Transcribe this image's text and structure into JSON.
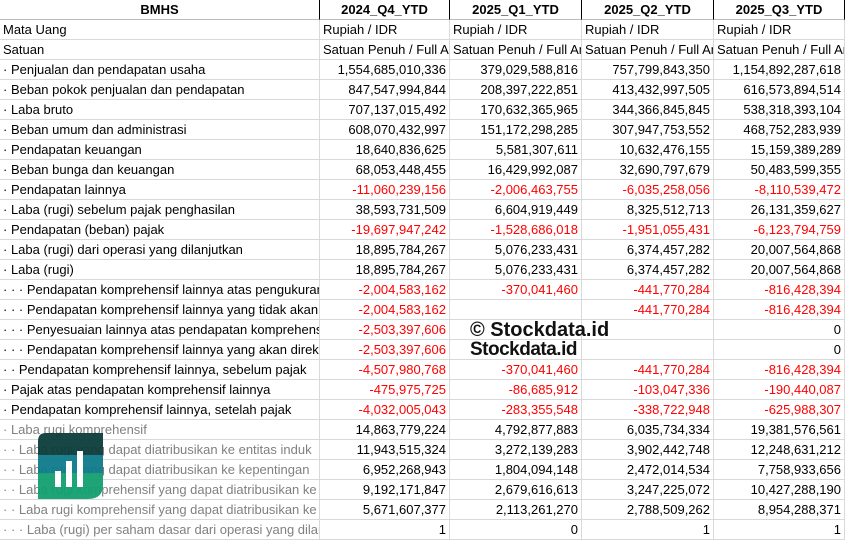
{
  "header": {
    "ticker": "BMHS",
    "periods": [
      "2024_Q4_YTD",
      "2025_Q1_YTD",
      "2025_Q2_YTD",
      "2025_Q3_YTD"
    ]
  },
  "meta_rows": [
    {
      "label": "Mata Uang",
      "values": [
        "Rupiah / IDR",
        "Rupiah / IDR",
        "Rupiah / IDR",
        "Rupiah / IDR"
      ]
    },
    {
      "label": "Satuan",
      "values": [
        "Satuan Penuh / Full Amount",
        "Satuan Penuh / Full Amount",
        "Satuan Penuh / Full Amount",
        "Satuan Penuh / Full Amount"
      ]
    }
  ],
  "rows": [
    {
      "label": "· Penjualan dan pendapatan usaha",
      "values": [
        "1,554,685,010,336",
        "379,029,588,816",
        "757,799,843,350",
        "1,154,892,287,618"
      ]
    },
    {
      "label": "· Beban pokok penjualan dan pendapatan",
      "values": [
        "847,547,994,844",
        "208,397,222,851",
        "413,432,997,505",
        "616,573,894,514"
      ]
    },
    {
      "label": "· Laba bruto",
      "values": [
        "707,137,015,492",
        "170,632,365,965",
        "344,366,845,845",
        "538,318,393,104"
      ]
    },
    {
      "label": "· Beban umum dan administrasi",
      "values": [
        "608,070,432,997",
        "151,172,298,285",
        "307,947,753,552",
        "468,752,283,939"
      ]
    },
    {
      "label": "· Pendapatan keuangan",
      "values": [
        "18,640,836,625",
        "5,581,307,611",
        "10,632,476,155",
        "15,159,389,289"
      ]
    },
    {
      "label": "· Beban bunga dan keuangan",
      "values": [
        "68,053,448,455",
        "16,429,992,087",
        "32,690,797,679",
        "50,483,599,355"
      ]
    },
    {
      "label": "· Pendapatan lainnya",
      "values": [
        "-11,060,239,156",
        "-2,006,463,755",
        "-6,035,258,056",
        "-8,110,539,472"
      ]
    },
    {
      "label": "· Laba (rugi) sebelum pajak penghasilan",
      "values": [
        "38,593,731,509",
        "6,604,919,449",
        "8,325,512,713",
        "26,131,359,627"
      ]
    },
    {
      "label": "· Pendapatan (beban) pajak",
      "values": [
        "-19,697,947,242",
        "-1,528,686,018",
        "-1,951,055,431",
        "-6,123,794,759"
      ]
    },
    {
      "label": "· Laba (rugi) dari operasi yang dilanjutkan",
      "values": [
        "18,895,784,267",
        "5,076,233,431",
        "6,374,457,282",
        "20,007,564,868"
      ]
    },
    {
      "label": "· Laba (rugi)",
      "values": [
        "18,895,784,267",
        "5,076,233,431",
        "6,374,457,282",
        "20,007,564,868"
      ]
    },
    {
      "label": "· · · Pendapatan komprehensif lainnya atas pengukuran",
      "values": [
        "-2,004,583,162",
        "-370,041,460",
        "-441,770,284",
        "-816,428,394"
      ]
    },
    {
      "label": "· · · Pendapatan komprehensif lainnya yang tidak akan",
      "values": [
        "-2,004,583,162",
        "",
        "-441,770,284",
        "-816,428,394"
      ]
    },
    {
      "label": "· · · Penyesuaian lainnya atas pendapatan komprehensif",
      "values": [
        "-2,503,397,606",
        "",
        "",
        "0"
      ]
    },
    {
      "label": "· · · Pendapatan komprehensif lainnya yang akan direklasifikasi",
      "values": [
        "-2,503,397,606",
        "",
        "",
        "0"
      ]
    },
    {
      "label": "· · Pendapatan komprehensif lainnya, sebelum pajak",
      "values": [
        "-4,507,980,768",
        "-370,041,460",
        "-441,770,284",
        "-816,428,394"
      ]
    },
    {
      "label": "· Pajak atas pendapatan komprehensif lainnya",
      "values": [
        "-475,975,725",
        "-86,685,912",
        "-103,047,336",
        "-190,440,087"
      ]
    },
    {
      "label": "· Pendapatan komprehensif lainnya, setelah pajak",
      "values": [
        "-4,032,005,043",
        "-283,355,548",
        "-338,722,948",
        "-625,988,307"
      ]
    },
    {
      "label": "· Laba rugi komprehensif",
      "gray": true,
      "values": [
        "14,863,779,224",
        "4,792,877,883",
        "6,035,734,334",
        "19,381,576,561"
      ]
    },
    {
      "label": "· · Laba rugi yang dapat diatribusikan ke entitas induk",
      "gray": true,
      "values": [
        "11,943,515,324",
        "3,272,139,283",
        "3,902,442,748",
        "12,248,631,212"
      ]
    },
    {
      "label": "· · Laba rugi yang dapat diatribusikan ke kepentingan",
      "gray": true,
      "values": [
        "6,952,268,943",
        "1,804,094,148",
        "2,472,014,534",
        "7,758,933,656"
      ]
    },
    {
      "label": "· · Laba rugi komprehensif yang dapat diatribusikan ke",
      "gray": true,
      "values": [
        "9,192,171,847",
        "2,679,616,613",
        "3,247,225,072",
        "10,427,288,190"
      ]
    },
    {
      "label": "· · Laba rugi komprehensif yang dapat diatribusikan ke",
      "gray": true,
      "values": [
        "5,671,607,377",
        "2,113,261,270",
        "2,788,509,262",
        "8,954,288,371"
      ]
    },
    {
      "label": "· · · Laba (rugi) per saham dasar dari operasi yang dilanjutkan",
      "gray": true,
      "values": [
        "1",
        "0",
        "1",
        "1"
      ]
    }
  ],
  "watermark": {
    "brand": "Stockdata.id",
    "copyright": "© Stockdata.id"
  },
  "colors": {
    "negative": "#ff0000",
    "grid": "#d9d9d9",
    "logo_dark": "#0b3d3a",
    "logo_teal": "#0e7b8c",
    "logo_green": "#12a070"
  }
}
